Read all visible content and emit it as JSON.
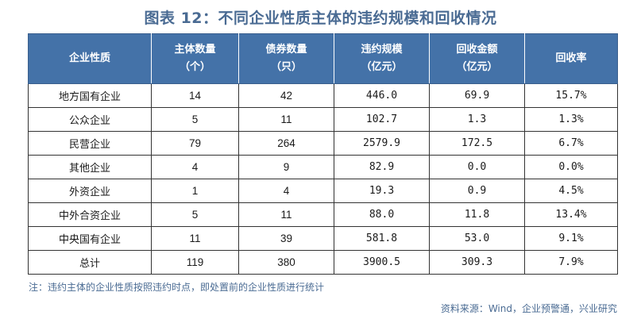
{
  "title": "图表 12：不同企业性质主体的违约规模和回收情况",
  "table": {
    "headers": [
      {
        "line1": "企业性质",
        "line2": ""
      },
      {
        "line1": "主体数量",
        "line2": "（个）"
      },
      {
        "line1": "债券数量",
        "line2": "（只）"
      },
      {
        "line1": "违约规模",
        "line2": "（亿元）"
      },
      {
        "line1": "回收金额",
        "line2": "（亿元）"
      },
      {
        "line1": "回收率",
        "line2": ""
      }
    ],
    "rows": [
      [
        "地方国有企业",
        "14",
        "42",
        "446.0",
        "69.9",
        "15.7%"
      ],
      [
        "公众企业",
        "5",
        "11",
        "102.7",
        "1.3",
        "1.3%"
      ],
      [
        "民营企业",
        "79",
        "264",
        "2579.9",
        "172.5",
        "6.7%"
      ],
      [
        "其他企业",
        "4",
        "9",
        "82.9",
        "0.0",
        "0.0%"
      ],
      [
        "外资企业",
        "1",
        "4",
        "19.3",
        "0.9",
        "4.5%"
      ],
      [
        "中外合资企业",
        "5",
        "11",
        "88.0",
        "11.8",
        "13.4%"
      ],
      [
        "中央国有企业",
        "11",
        "39",
        "581.8",
        "53.0",
        "9.1%"
      ],
      [
        "总计",
        "119",
        "380",
        "3900.5",
        "309.3",
        "7.9%"
      ]
    ]
  },
  "note": "注：违约主体的企业性质按照违约时点，即处置前的企业性质进行统计",
  "source": "资料来源：Wind，企业预警通，兴业研究",
  "colors": {
    "header_bg": "#4472a8",
    "title_text": "#4a6b93"
  }
}
